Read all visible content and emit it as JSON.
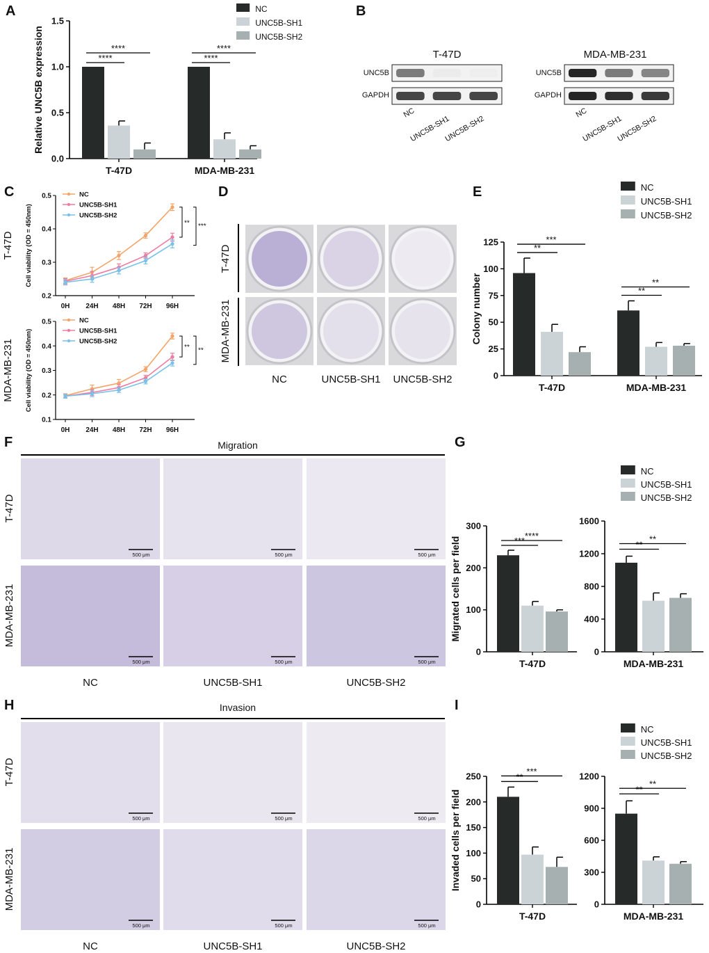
{
  "colors": {
    "nc": "#262b29",
    "sh1": "#ccd3d7",
    "sh2": "#a7b0b1",
    "line_nc": "#f5a469",
    "line_sh1": "#ee7ba1",
    "line_sh2": "#79c1e9",
    "stain": "#8a78b8"
  },
  "panels": {
    "A": "A",
    "B": "B",
    "C": "C",
    "D": "D",
    "E": "E",
    "F": "F",
    "G": "G",
    "H": "H",
    "I": "I"
  },
  "legend": [
    "NC",
    "UNC5B-SH1",
    "UNC5B-SH2"
  ],
  "groups": [
    "NC",
    "UNC5B-SH1",
    "UNC5B-SH2"
  ],
  "cell_lines": [
    "T-47D",
    "MDA-MB-231"
  ],
  "western": {
    "t47d_title": "T-47D",
    "mda_title": "MDA-MB-231",
    "row1": "UNC5B",
    "row2": "GAPDH",
    "lanes": [
      "NC",
      "UNC5B-SH1",
      "UNC5B-SH2"
    ],
    "band_intensity": {
      "t47d_unc5b": [
        0.55,
        0.03,
        0.02
      ],
      "t47d_gapdh": [
        0.8,
        0.8,
        0.8
      ],
      "mda_unc5b": [
        0.95,
        0.55,
        0.5
      ],
      "mda_gapdh": [
        0.95,
        0.9,
        0.85
      ]
    }
  },
  "images": {
    "migration_title": "Migration",
    "invasion_title": "Invasion",
    "scale_bar": "500 μm",
    "row_labels": [
      "T-47D",
      "MDA-MB-231"
    ],
    "col_labels": [
      "NC",
      "UNC5B-SH1",
      "UNC5B-SH2"
    ]
  },
  "chart_data": [
    {
      "id": "A",
      "type": "bar",
      "ylabel": "Relative UNC5B expression",
      "categories": [
        "T-47D",
        "MDA-MB-231"
      ],
      "ylim": [
        0,
        1.5
      ],
      "yticks": [
        "0.0",
        "0.5",
        "1.0",
        "1.5"
      ],
      "series": [
        {
          "name": "NC",
          "values": [
            1.0,
            1.0
          ],
          "err": [
            0,
            0
          ]
        },
        {
          "name": "UNC5B-SH1",
          "values": [
            0.36,
            0.21
          ],
          "err": [
            0.05,
            0.07
          ]
        },
        {
          "name": "UNC5B-SH2",
          "values": [
            0.1,
            0.1
          ],
          "err": [
            0.07,
            0.04
          ]
        }
      ],
      "sig": [
        [
          "****",
          "****"
        ],
        [
          "****",
          "****"
        ]
      ]
    },
    {
      "id": "C1",
      "type": "line",
      "ylabel": "Cell viability (OD = 450nm)",
      "row_label": "T-47D",
      "x": [
        "0H",
        "24H",
        "48H",
        "72H",
        "96H"
      ],
      "ylim": [
        0.2,
        0.5
      ],
      "yticks": [
        "0.2",
        "0.3",
        "0.4",
        "0.5"
      ],
      "series": [
        {
          "name": "NC",
          "values": [
            0.245,
            0.27,
            0.32,
            0.38,
            0.465
          ],
          "err": [
            0.008,
            0.015,
            0.012,
            0.008,
            0.01
          ]
        },
        {
          "name": "UNC5B-SH1",
          "values": [
            0.243,
            0.26,
            0.285,
            0.32,
            0.375
          ],
          "err": [
            0.008,
            0.012,
            0.01,
            0.008,
            0.012
          ]
        },
        {
          "name": "UNC5B-SH2",
          "values": [
            0.24,
            0.25,
            0.275,
            0.305,
            0.355
          ],
          "err": [
            0.008,
            0.01,
            0.01,
            0.01,
            0.012
          ]
        }
      ],
      "sig": [
        "**",
        "***"
      ]
    },
    {
      "id": "C2",
      "type": "line",
      "ylabel": "Cell viability (OD = 450nm)",
      "row_label": "MDA-MB-231",
      "x": [
        "0H",
        "24H",
        "48H",
        "72H",
        "96H"
      ],
      "ylim": [
        0.1,
        0.5
      ],
      "yticks": [
        "0.1",
        "0.2",
        "0.3",
        "0.4",
        "0.5"
      ],
      "series": [
        {
          "name": "NC",
          "values": [
            0.197,
            0.225,
            0.248,
            0.305,
            0.44
          ],
          "err": [
            0.008,
            0.015,
            0.015,
            0.01,
            0.012
          ]
        },
        {
          "name": "UNC5B-SH1",
          "values": [
            0.195,
            0.21,
            0.23,
            0.27,
            0.355
          ],
          "err": [
            0.008,
            0.012,
            0.012,
            0.01,
            0.015
          ]
        },
        {
          "name": "UNC5B-SH2",
          "values": [
            0.195,
            0.205,
            0.22,
            0.255,
            0.33
          ],
          "err": [
            0.008,
            0.012,
            0.01,
            0.01,
            0.012
          ]
        }
      ],
      "sig": [
        "**",
        "**"
      ]
    },
    {
      "id": "E",
      "type": "bar",
      "ylabel": "Colony number",
      "categories": [
        "T-47D",
        "MDA-MB-231"
      ],
      "ylim": [
        0,
        125
      ],
      "yticks": [
        "0",
        "25",
        "50",
        "75",
        "100",
        "125"
      ],
      "series": [
        {
          "name": "NC",
          "values": [
            96,
            61
          ],
          "err": [
            14,
            9
          ]
        },
        {
          "name": "UNC5B-SH1",
          "values": [
            41,
            27
          ],
          "err": [
            7,
            4
          ]
        },
        {
          "name": "UNC5B-SH2",
          "values": [
            22,
            28
          ],
          "err": [
            5,
            2
          ]
        }
      ],
      "sig": [
        [
          "**",
          "***"
        ],
        [
          "**",
          "**"
        ]
      ]
    },
    {
      "id": "G1",
      "type": "bar",
      "ylabel": "Migrated cells per field",
      "categories": [
        "T-47D"
      ],
      "ylim": [
        0,
        300
      ],
      "yticks": [
        "0",
        "100",
        "200",
        "300"
      ],
      "series": [
        {
          "name": "NC",
          "values": [
            230
          ],
          "err": [
            12
          ]
        },
        {
          "name": "UNC5B-SH1",
          "values": [
            110
          ],
          "err": [
            10
          ]
        },
        {
          "name": "UNC5B-SH2",
          "values": [
            96
          ],
          "err": [
            4
          ]
        }
      ],
      "sig": [
        [
          "***",
          "****"
        ]
      ]
    },
    {
      "id": "G2",
      "type": "bar",
      "ylabel": "",
      "categories": [
        "MDA-MB-231"
      ],
      "ylim": [
        0,
        1600
      ],
      "yticks": [
        "0",
        "400",
        "800",
        "1200",
        "1600"
      ],
      "series": [
        {
          "name": "NC",
          "values": [
            1090
          ],
          "err": [
            80
          ]
        },
        {
          "name": "UNC5B-SH1",
          "values": [
            625
          ],
          "err": [
            95
          ]
        },
        {
          "name": "UNC5B-SH2",
          "values": [
            660
          ],
          "err": [
            50
          ]
        }
      ],
      "sig": [
        [
          "**",
          "**"
        ]
      ]
    },
    {
      "id": "I1",
      "type": "bar",
      "ylabel": "Invaded cells per field",
      "categories": [
        "T-47D"
      ],
      "ylim": [
        0,
        250
      ],
      "yticks": [
        "0",
        "50",
        "100",
        "150",
        "200",
        "250"
      ],
      "series": [
        {
          "name": "NC",
          "values": [
            210
          ],
          "err": [
            19
          ]
        },
        {
          "name": "UNC5B-SH1",
          "values": [
            97
          ],
          "err": [
            15
          ]
        },
        {
          "name": "UNC5B-SH2",
          "values": [
            73
          ],
          "err": [
            19
          ]
        }
      ],
      "sig": [
        [
          "**",
          "***"
        ]
      ]
    },
    {
      "id": "I2",
      "type": "bar",
      "ylabel": "",
      "categories": [
        "MDA-MB-231"
      ],
      "ylim": [
        0,
        1200
      ],
      "yticks": [
        "0",
        "300",
        "600",
        "900",
        "1200"
      ],
      "series": [
        {
          "name": "NC",
          "values": [
            850
          ],
          "err": [
            120
          ]
        },
        {
          "name": "UNC5B-SH1",
          "values": [
            410
          ],
          "err": [
            35
          ]
        },
        {
          "name": "UNC5B-SH2",
          "values": [
            380
          ],
          "err": [
            20
          ]
        }
      ],
      "sig": [
        [
          "**",
          "**"
        ]
      ]
    }
  ]
}
